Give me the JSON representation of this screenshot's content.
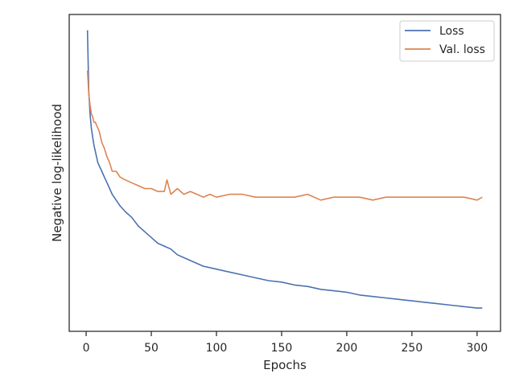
{
  "chart_data": {
    "type": "line",
    "xlabel": "Epochs",
    "ylabel": "Negative log-likelihood",
    "xlim": [
      -13,
      318
    ],
    "ylim": [
      0,
      1
    ],
    "y_tick_labels_shown": false,
    "x_ticks": [
      0,
      50,
      100,
      150,
      200,
      250,
      300
    ],
    "legend_placement": "top-right",
    "grid": false,
    "series": [
      {
        "name": "Loss",
        "color": "#4c72b0",
        "x": [
          1,
          2,
          3,
          4,
          5,
          6,
          7,
          8,
          9,
          10,
          12,
          14,
          16,
          18,
          20,
          23,
          26,
          30,
          35,
          40,
          45,
          50,
          55,
          60,
          65,
          70,
          75,
          80,
          90,
          100,
          110,
          120,
          130,
          140,
          150,
          160,
          170,
          180,
          190,
          200,
          210,
          220,
          230,
          240,
          250,
          260,
          270,
          280,
          290,
          300,
          304
        ],
        "values": [
          0.99,
          0.78,
          0.7,
          0.65,
          0.62,
          0.59,
          0.57,
          0.55,
          0.53,
          0.52,
          0.5,
          0.48,
          0.46,
          0.44,
          0.42,
          0.4,
          0.38,
          0.36,
          0.34,
          0.31,
          0.29,
          0.27,
          0.25,
          0.24,
          0.23,
          0.21,
          0.2,
          0.19,
          0.17,
          0.16,
          0.15,
          0.14,
          0.13,
          0.12,
          0.115,
          0.105,
          0.1,
          0.09,
          0.085,
          0.08,
          0.07,
          0.065,
          0.06,
          0.055,
          0.05,
          0.045,
          0.04,
          0.035,
          0.03,
          0.025,
          0.025
        ]
      },
      {
        "name": "Val. loss",
        "color": "#dd8452",
        "x": [
          1,
          2,
          3,
          4,
          5,
          6,
          7,
          8,
          10,
          12,
          14,
          16,
          18,
          20,
          23,
          26,
          30,
          35,
          40,
          45,
          50,
          55,
          60,
          62,
          65,
          70,
          75,
          80,
          85,
          90,
          95,
          100,
          110,
          120,
          130,
          140,
          150,
          160,
          170,
          180,
          190,
          200,
          210,
          220,
          230,
          240,
          250,
          260,
          270,
          280,
          290,
          300,
          304
        ],
        "values": [
          0.85,
          0.77,
          0.73,
          0.7,
          0.69,
          0.67,
          0.67,
          0.66,
          0.64,
          0.6,
          0.58,
          0.55,
          0.53,
          0.5,
          0.5,
          0.48,
          0.47,
          0.46,
          0.45,
          0.44,
          0.44,
          0.43,
          0.43,
          0.47,
          0.42,
          0.44,
          0.42,
          0.43,
          0.42,
          0.41,
          0.42,
          0.41,
          0.42,
          0.42,
          0.41,
          0.41,
          0.41,
          0.41,
          0.42,
          0.4,
          0.41,
          0.41,
          0.41,
          0.4,
          0.41,
          0.41,
          0.41,
          0.41,
          0.41,
          0.41,
          0.41,
          0.4,
          0.41
        ]
      }
    ]
  }
}
